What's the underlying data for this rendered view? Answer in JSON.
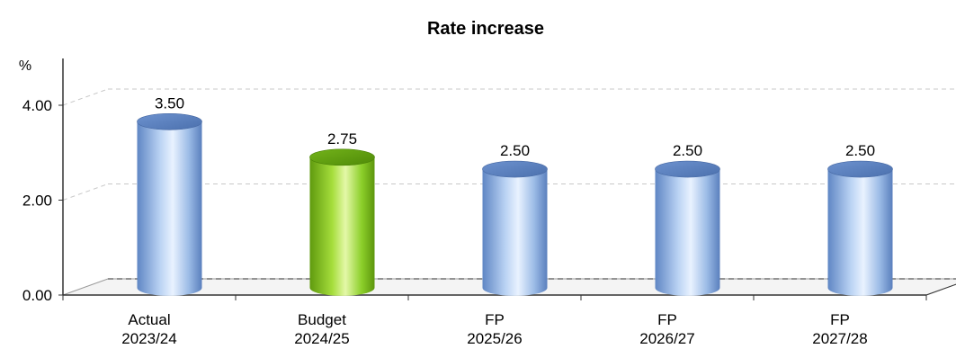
{
  "chart_data": {
    "type": "bar",
    "title": "Rate increase",
    "unit_label": "%",
    "categories": [
      [
        "Actual",
        "2023/24"
      ],
      [
        "Budget",
        "2024/25"
      ],
      [
        "FP",
        "2025/26"
      ],
      [
        "FP",
        "2026/27"
      ],
      [
        "FP",
        "2027/28"
      ]
    ],
    "values": [
      3.5,
      2.75,
      2.5,
      2.5,
      2.5
    ],
    "value_labels": [
      "3.50",
      "2.75",
      "2.50",
      "2.50",
      "2.50"
    ],
    "highlight_index": 1,
    "yticks": [
      "0.00",
      "2.00",
      "4.00"
    ],
    "ylim": [
      0,
      4.0
    ],
    "grid": true,
    "legend": "none",
    "colors": {
      "bar": "#8fb1e0",
      "highlight": "#8ccf2a"
    }
  }
}
